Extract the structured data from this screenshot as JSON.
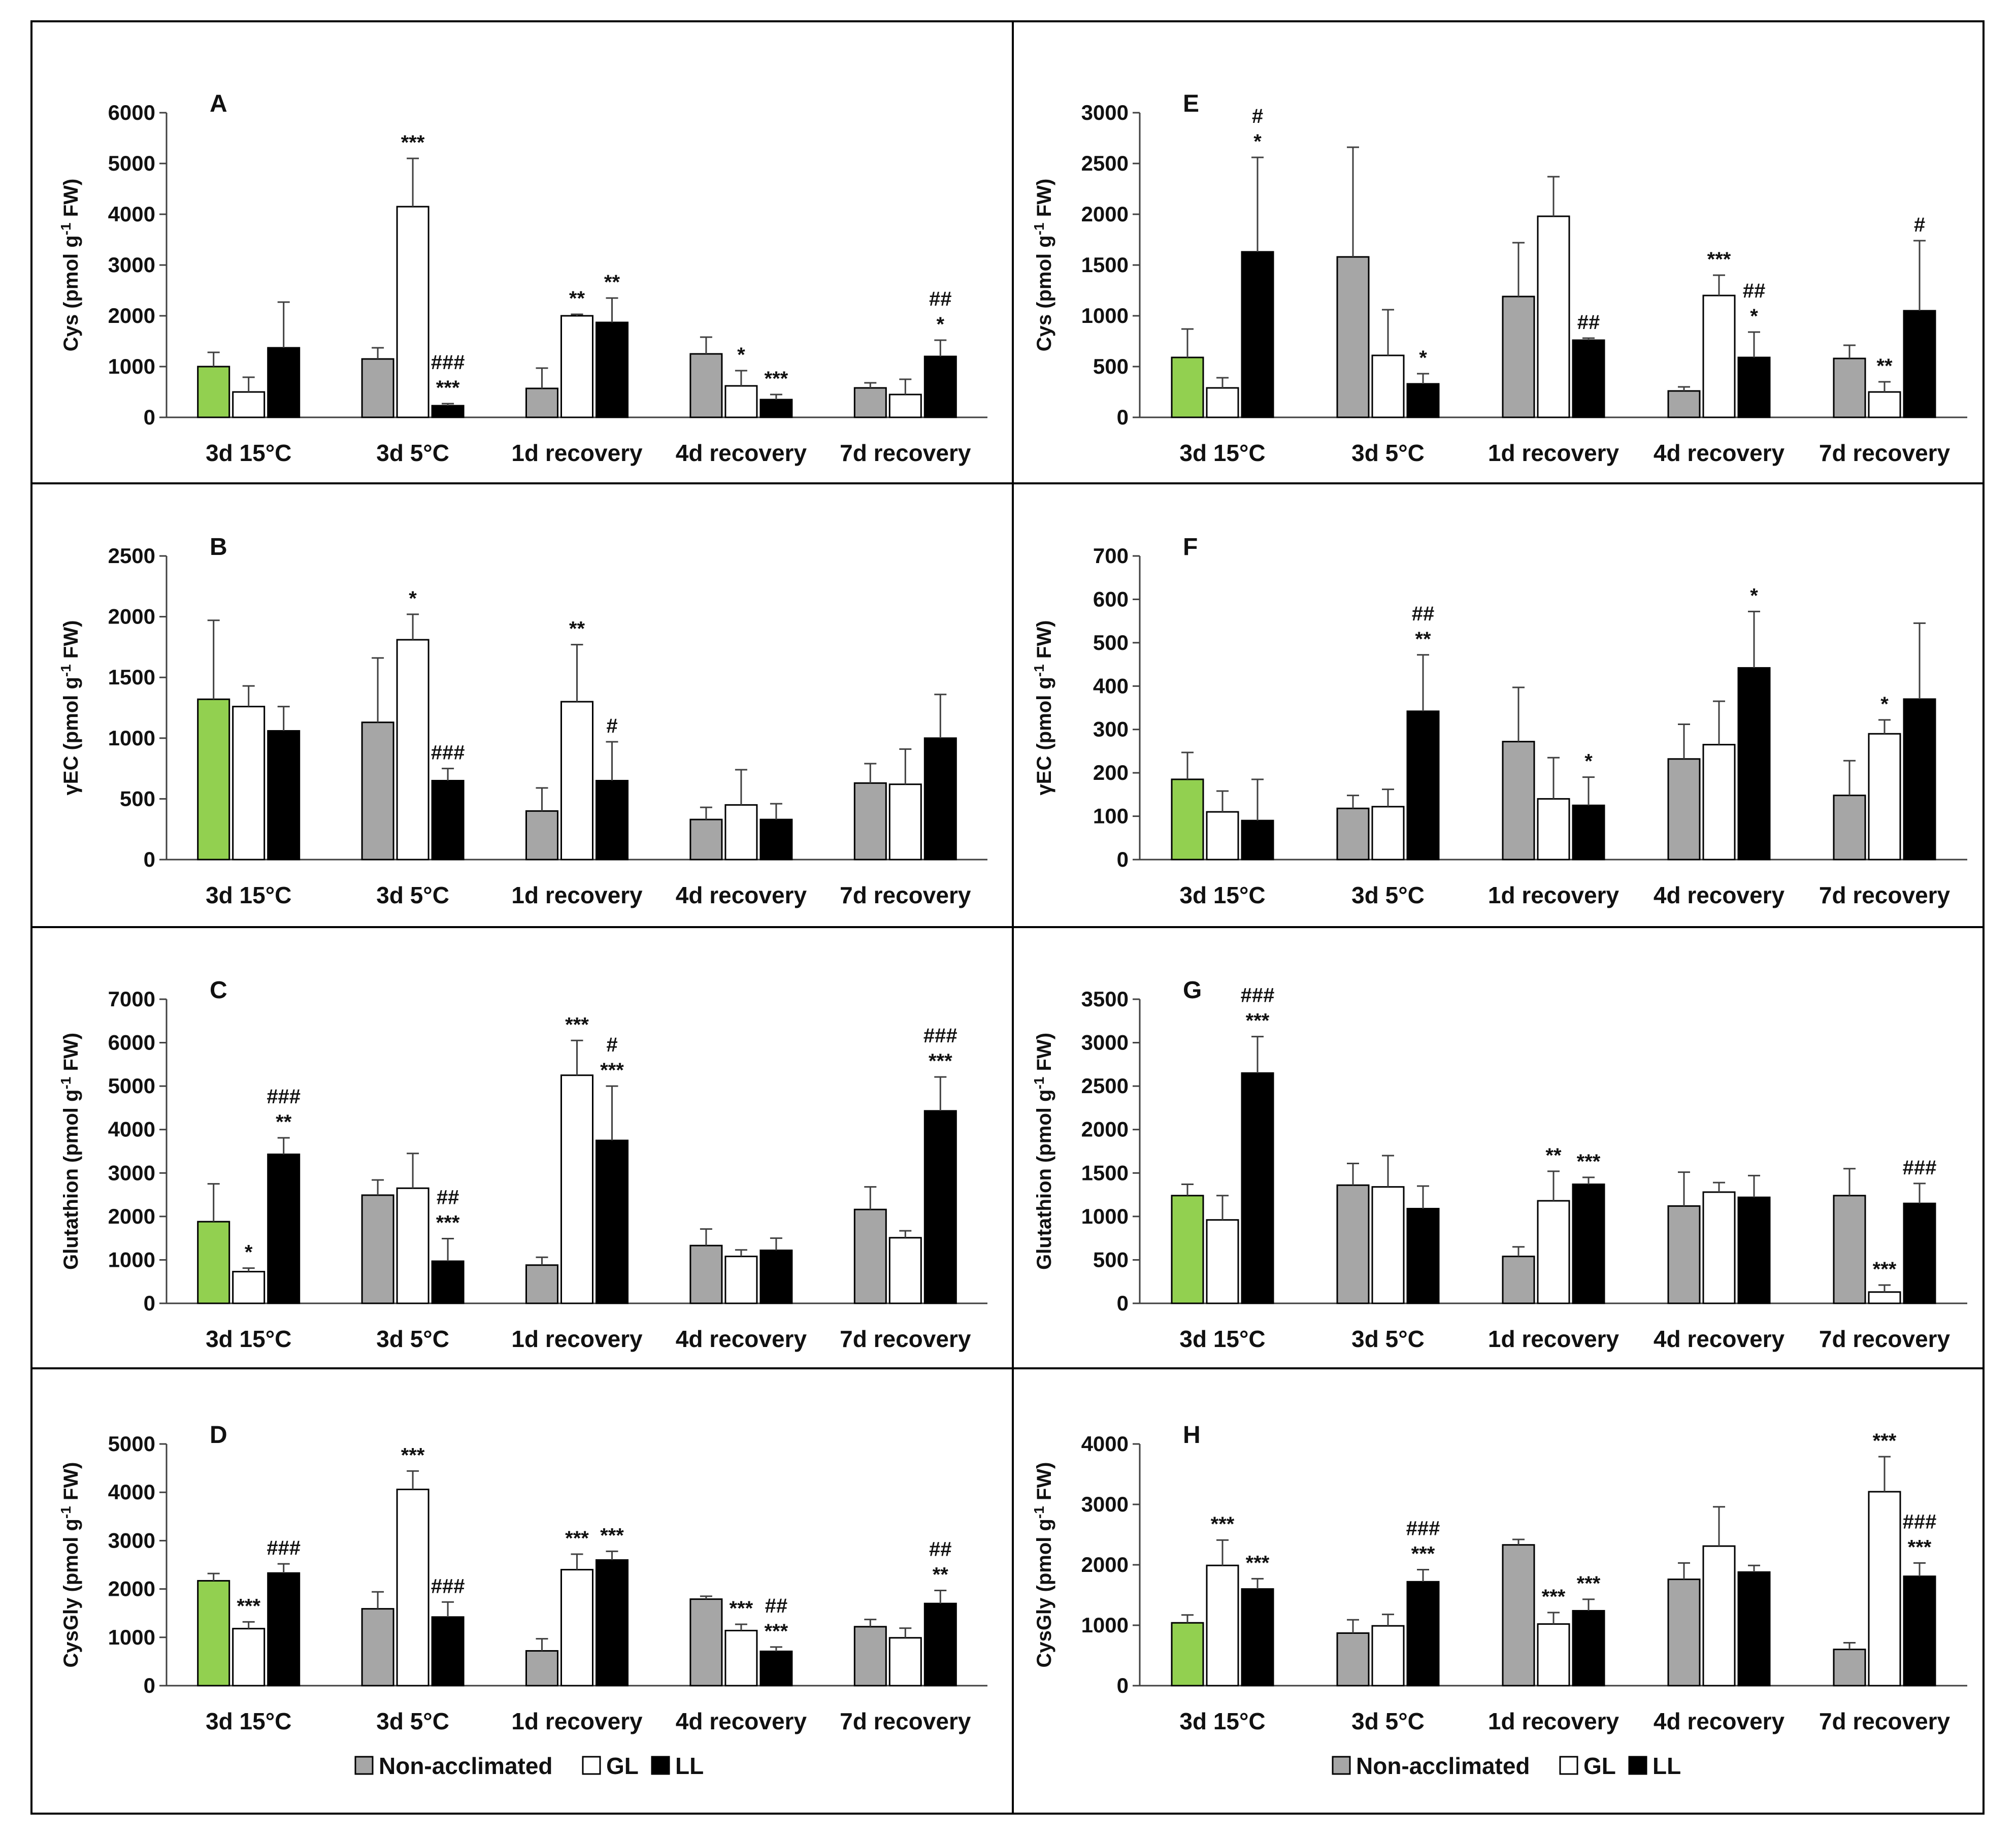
{
  "colors": {
    "non_acclimated": "#a6a6a6",
    "gl": "#ffffff",
    "ll": "#000000",
    "first_bar_highlight": "#92d050",
    "axis": "#404040",
    "error": "#404040"
  },
  "legend": {
    "items": [
      {
        "label": "Non-acclimated",
        "color": "#a6a6a6"
      },
      {
        "label": "GL",
        "color": "#ffffff"
      },
      {
        "label": "LL",
        "color": "#000000"
      }
    ]
  },
  "chart_data": [
    {
      "panel": "A",
      "type": "bar",
      "ylabel": "Cys (pmol g-1 FW)",
      "ylim": [
        0,
        6000
      ],
      "yticks": [
        0,
        1000,
        2000,
        3000,
        4000,
        5000,
        6000
      ],
      "categories": [
        "3d 15°C",
        "3d 5°C",
        "1d recovery",
        "4d recovery",
        "7d recovery"
      ],
      "series": [
        {
          "name": "Non-acclimated",
          "values": [
            1000,
            1150,
            570,
            1250,
            580
          ],
          "errors": [
            280,
            220,
            400,
            330,
            100
          ]
        },
        {
          "name": "GL",
          "values": [
            500,
            4150,
            2000,
            620,
            450
          ],
          "errors": [
            290,
            950,
            30,
            300,
            300
          ]
        },
        {
          "name": "LL",
          "values": [
            1370,
            230,
            1870,
            350,
            1200
          ],
          "errors": [
            900,
            40,
            480,
            100,
            320
          ]
        }
      ],
      "annotations": [
        [
          "",
          "",
          ""
        ],
        [
          "",
          "***",
          "###\n***"
        ],
        [
          "",
          "**",
          "**"
        ],
        [
          "",
          "*",
          "***"
        ],
        [
          "",
          "",
          "##\n*"
        ]
      ]
    },
    {
      "panel": "E",
      "type": "bar",
      "ylabel": "Cys (pmol g-1 FW)",
      "ylim": [
        0,
        3000
      ],
      "yticks": [
        0,
        500,
        1000,
        1500,
        2000,
        2500,
        3000
      ],
      "categories": [
        "3d 15°C",
        "3d 5°C",
        "1d recovery",
        "4d recovery",
        "7d recovery"
      ],
      "series": [
        {
          "name": "Non-acclimated",
          "values": [
            590,
            1580,
            1190,
            260,
            580
          ],
          "errors": [
            280,
            1080,
            530,
            40,
            130
          ]
        },
        {
          "name": "GL",
          "values": [
            290,
            610,
            1980,
            1200,
            250
          ],
          "errors": [
            100,
            450,
            390,
            200,
            100
          ]
        },
        {
          "name": "LL",
          "values": [
            1630,
            330,
            760,
            590,
            1050
          ],
          "errors": [
            930,
            100,
            20,
            250,
            690
          ]
        }
      ],
      "annotations": [
        [
          "",
          "",
          "#\n*"
        ],
        [
          "",
          "",
          "*"
        ],
        [
          "",
          "",
          "##"
        ],
        [
          "",
          "***",
          "##\n*"
        ],
        [
          "",
          "**",
          "#"
        ]
      ]
    },
    {
      "panel": "B",
      "type": "bar",
      "ylabel": "γEC (pmol g-1 FW)",
      "ylim": [
        0,
        2500
      ],
      "yticks": [
        0,
        500,
        1000,
        1500,
        2000,
        2500
      ],
      "categories": [
        "3d 15°C",
        "3d 5°C",
        "1d recovery",
        "4d recovery",
        "7d recovery"
      ],
      "series": [
        {
          "name": "Non-acclimated",
          "values": [
            1320,
            1130,
            400,
            330,
            630
          ],
          "errors": [
            650,
            530,
            190,
            100,
            160
          ]
        },
        {
          "name": "GL",
          "values": [
            1260,
            1810,
            1300,
            450,
            620
          ],
          "errors": [
            170,
            210,
            470,
            290,
            290
          ]
        },
        {
          "name": "LL",
          "values": [
            1060,
            650,
            650,
            330,
            1000
          ],
          "errors": [
            200,
            100,
            320,
            130,
            360
          ]
        }
      ],
      "annotations": [
        [
          "",
          "",
          ""
        ],
        [
          "",
          "*",
          "###"
        ],
        [
          "",
          "**",
          "#"
        ],
        [
          "",
          "",
          ""
        ],
        [
          "",
          "",
          ""
        ]
      ]
    },
    {
      "panel": "F",
      "type": "bar",
      "ylabel": "γEC (pmol g-1 FW)",
      "ylim": [
        0,
        700
      ],
      "yticks": [
        0,
        100,
        200,
        300,
        400,
        500,
        600,
        700
      ],
      "categories": [
        "3d 15°C",
        "3d 5°C",
        "1d recovery",
        "4d recovery",
        "7d recovery"
      ],
      "series": [
        {
          "name": "Non-acclimated",
          "values": [
            185,
            118,
            272,
            232,
            148
          ],
          "errors": [
            62,
            30,
            125,
            80,
            80
          ]
        },
        {
          "name": "GL",
          "values": [
            110,
            122,
            140,
            265,
            290
          ],
          "errors": [
            48,
            40,
            95,
            100,
            32
          ]
        },
        {
          "name": "LL",
          "values": [
            90,
            342,
            125,
            442,
            370
          ],
          "errors": [
            95,
            130,
            65,
            130,
            175
          ]
        }
      ],
      "annotations": [
        [
          "",
          "",
          ""
        ],
        [
          "",
          "",
          "##\n**"
        ],
        [
          "",
          "",
          "*"
        ],
        [
          "",
          "",
          "*"
        ],
        [
          "",
          "*",
          ""
        ]
      ]
    },
    {
      "panel": "C",
      "type": "bar",
      "ylabel": "Glutathion (pmol g-1 FW)",
      "ylim": [
        0,
        7000
      ],
      "yticks": [
        0,
        1000,
        2000,
        3000,
        4000,
        5000,
        6000,
        7000
      ],
      "categories": [
        "3d 15°C",
        "3d 5°C",
        "1d recovery",
        "4d recovery",
        "7d recovery"
      ],
      "series": [
        {
          "name": "Non-acclimated",
          "values": [
            1880,
            2490,
            880,
            1330,
            2160
          ],
          "errors": [
            870,
            350,
            180,
            380,
            520
          ]
        },
        {
          "name": "GL",
          "values": [
            730,
            2650,
            5250,
            1080,
            1510
          ],
          "errors": [
            80,
            800,
            800,
            150,
            160
          ]
        },
        {
          "name": "LL",
          "values": [
            3430,
            970,
            3750,
            1220,
            4430
          ],
          "errors": [
            380,
            520,
            1250,
            280,
            780
          ]
        }
      ],
      "annotations": [
        [
          "",
          "*",
          "###\n**"
        ],
        [
          "",
          "",
          "##\n***"
        ],
        [
          "",
          "***",
          "#\n***"
        ],
        [
          "",
          "",
          ""
        ],
        [
          "",
          "",
          "###\n***"
        ]
      ]
    },
    {
      "panel": "G",
      "type": "bar",
      "ylabel": "Glutathion (pmol g-1 FW)",
      "ylim": [
        0,
        3500
      ],
      "yticks": [
        0,
        500,
        1000,
        1500,
        2000,
        2500,
        3000,
        3500
      ],
      "categories": [
        "3d 15°C",
        "3d 5°C",
        "1d recovery",
        "4d recovery",
        "7d recovery"
      ],
      "series": [
        {
          "name": "Non-acclimated",
          "values": [
            1240,
            1360,
            540,
            1120,
            1240
          ],
          "errors": [
            130,
            250,
            110,
            390,
            310
          ]
        },
        {
          "name": "GL",
          "values": [
            960,
            1340,
            1180,
            1280,
            130
          ],
          "errors": [
            280,
            360,
            340,
            110,
            80
          ]
        },
        {
          "name": "LL",
          "values": [
            2650,
            1090,
            1370,
            1220,
            1150
          ],
          "errors": [
            420,
            260,
            80,
            250,
            230
          ]
        }
      ],
      "annotations": [
        [
          "",
          "",
          "###\n***"
        ],
        [
          "",
          "",
          ""
        ],
        [
          "",
          "**",
          "***"
        ],
        [
          "",
          "",
          ""
        ],
        [
          "",
          "***",
          "###"
        ]
      ]
    },
    {
      "panel": "D",
      "type": "bar",
      "ylabel": "CysGly (pmol g-1 FW)",
      "ylim": [
        0,
        5000
      ],
      "yticks": [
        0,
        1000,
        2000,
        3000,
        4000,
        5000
      ],
      "categories": [
        "3d 15°C",
        "3d 5°C",
        "1d recovery",
        "4d recovery",
        "7d recovery"
      ],
      "series": [
        {
          "name": "Non-acclimated",
          "values": [
            2170,
            1590,
            720,
            1790,
            1220
          ],
          "errors": [
            150,
            350,
            250,
            60,
            150
          ]
        },
        {
          "name": "GL",
          "values": [
            1180,
            4060,
            2400,
            1140,
            990
          ],
          "errors": [
            140,
            380,
            320,
            130,
            200
          ]
        },
        {
          "name": "LL",
          "values": [
            2330,
            1420,
            2600,
            710,
            1700
          ],
          "errors": [
            190,
            310,
            180,
            90,
            270
          ]
        }
      ],
      "annotations": [
        [
          "",
          "***",
          "###"
        ],
        [
          "",
          "***",
          "###"
        ],
        [
          "",
          "***",
          "***"
        ],
        [
          "",
          "***",
          "##\n***"
        ],
        [
          "",
          "",
          "##\n**"
        ]
      ]
    },
    {
      "panel": "H",
      "type": "bar",
      "ylabel": "CysGly (pmol g-1 FW)",
      "ylim": [
        0,
        4000
      ],
      "yticks": [
        0,
        1000,
        2000,
        3000,
        4000
      ],
      "categories": [
        "3d 15°C",
        "3d 5°C",
        "1d recovery",
        "4d recovery",
        "7d recovery"
      ],
      "series": [
        {
          "name": "Non-acclimated",
          "values": [
            1040,
            870,
            2330,
            1760,
            600
          ],
          "errors": [
            130,
            220,
            90,
            270,
            110
          ]
        },
        {
          "name": "GL",
          "values": [
            1990,
            990,
            1020,
            2310,
            3210
          ],
          "errors": [
            420,
            190,
            190,
            650,
            580
          ]
        },
        {
          "name": "LL",
          "values": [
            1600,
            1720,
            1240,
            1880,
            1810
          ],
          "errors": [
            170,
            200,
            190,
            110,
            220
          ]
        }
      ],
      "annotations": [
        [
          "",
          "***",
          "***"
        ],
        [
          "",
          "",
          "###\n***"
        ],
        [
          "",
          "***",
          "***"
        ],
        [
          "",
          "",
          ""
        ],
        [
          "",
          "***",
          "###\n***"
        ]
      ]
    }
  ]
}
